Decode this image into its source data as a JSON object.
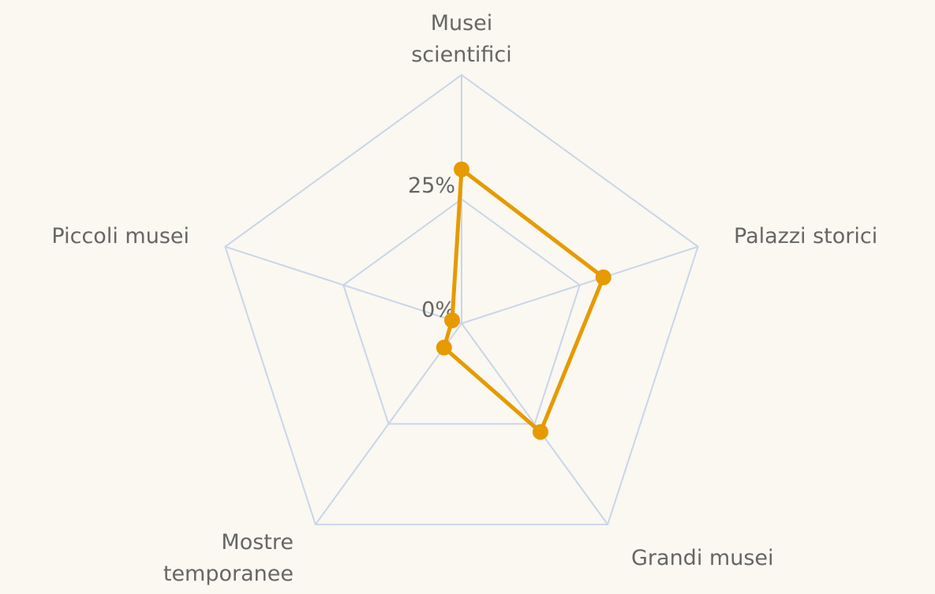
{
  "chart_data": {
    "type": "radar",
    "categories": [
      "Musei scientifici",
      "Palazzi storici",
      "Grandi musei",
      "Mostre temporanee",
      "Piccoli musei"
    ],
    "values": [
      31,
      30,
      27,
      6,
      2
    ],
    "color": "#e69a00",
    "rlim": [
      0,
      50
    ],
    "rticks": [
      {
        "value": 0,
        "label": "0%"
      },
      {
        "value": 25,
        "label": "25%"
      }
    ],
    "grid": true
  }
}
